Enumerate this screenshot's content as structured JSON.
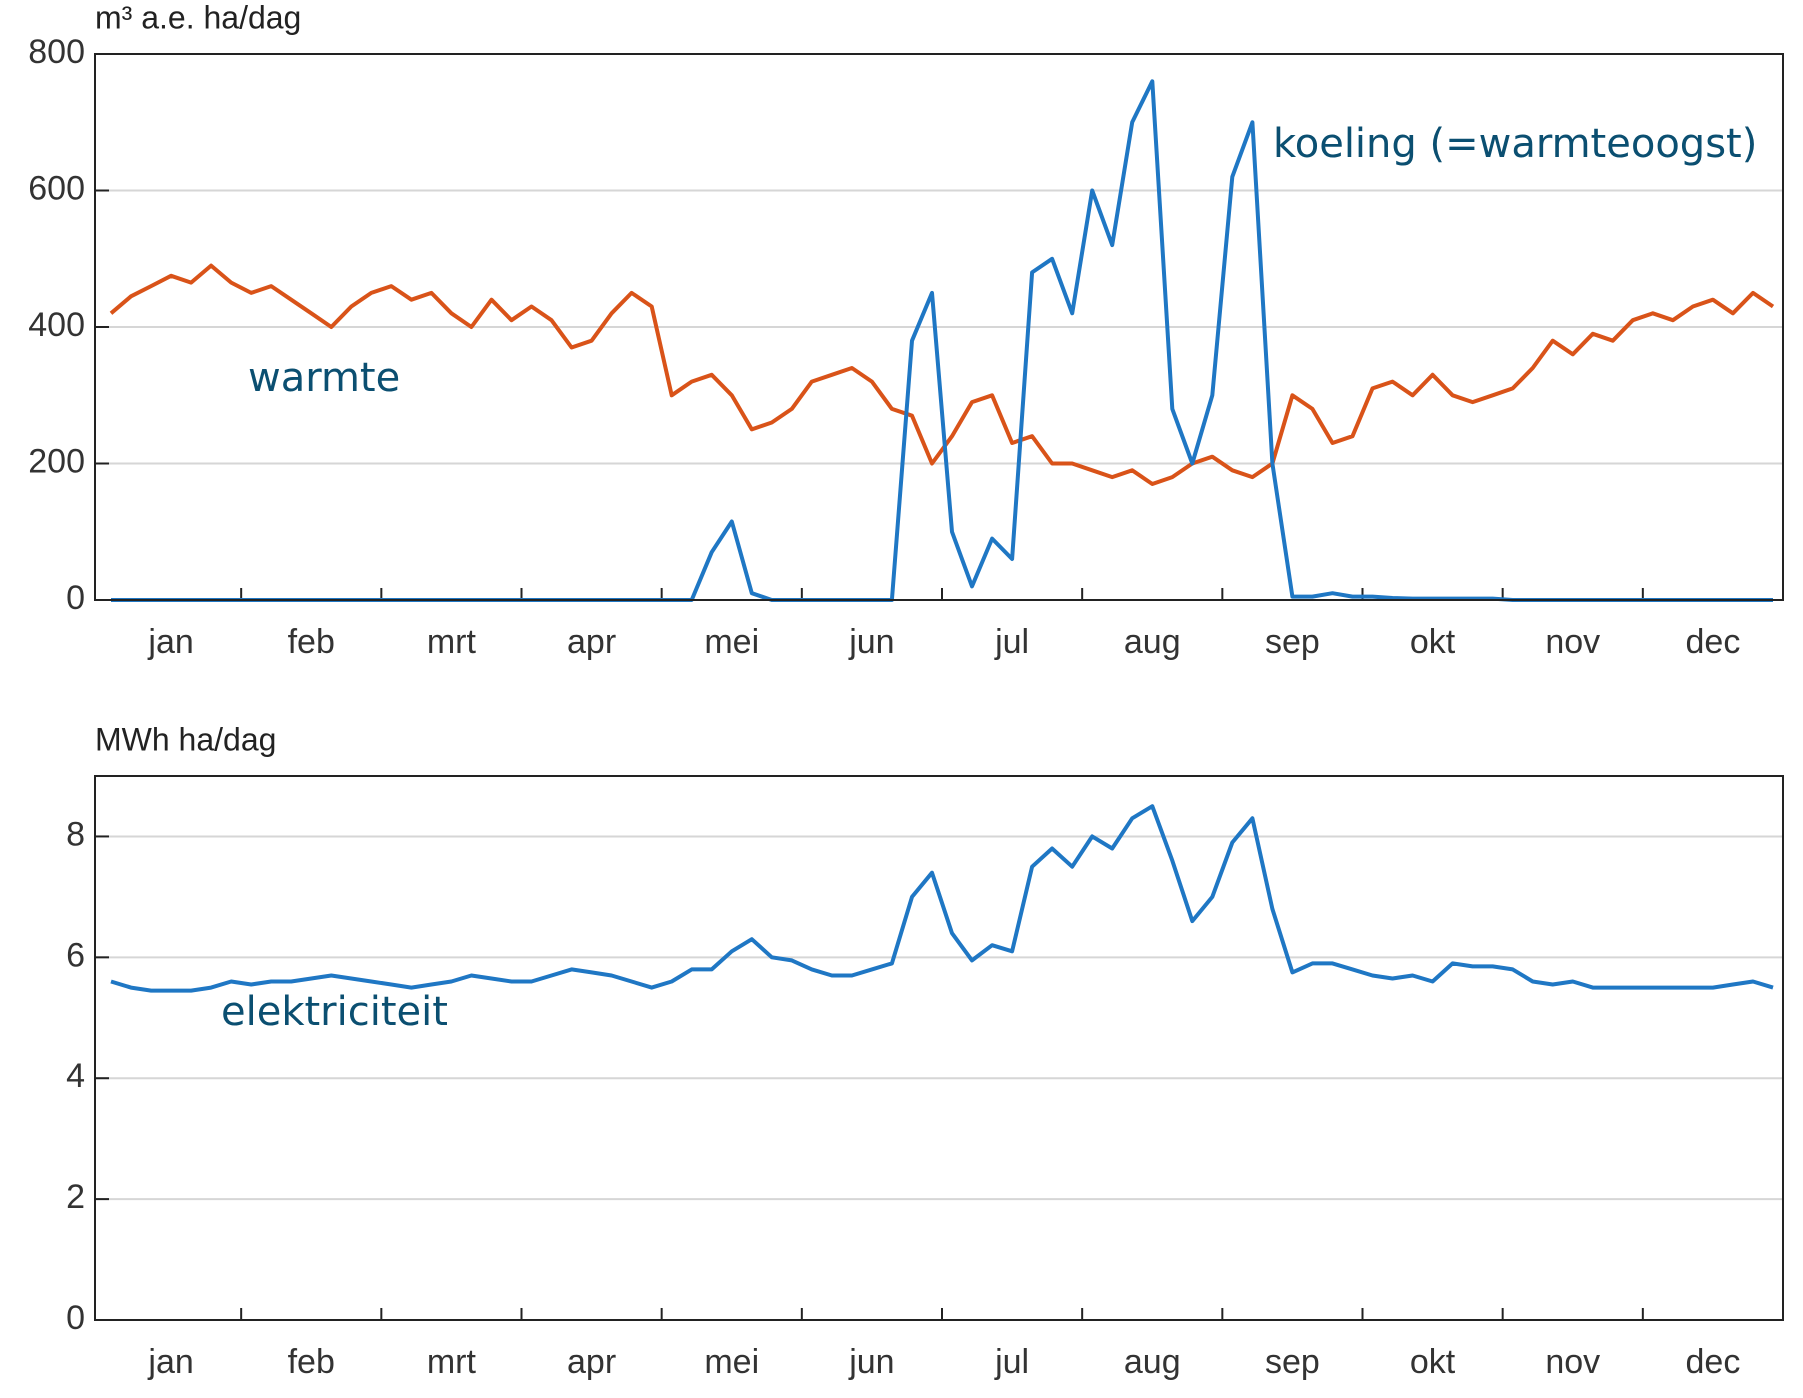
{
  "chart_data": [
    {
      "type": "line",
      "ylabel": "m³ a.e. ha/dag",
      "categories": [
        null,
        null,
        null,
        "jan",
        null,
        null,
        null,
        null,
        null,
        null,
        "feb",
        null,
        null,
        null,
        null,
        null,
        null,
        "mrt",
        null,
        null,
        null,
        null,
        null,
        null,
        "apr",
        null,
        null,
        null,
        null,
        null,
        null,
        "mei",
        null,
        null,
        null,
        null,
        null,
        null,
        "jun",
        null,
        null,
        null,
        null,
        null,
        null,
        "jul",
        null,
        null,
        null,
        null,
        null,
        null,
        "aug",
        null,
        null,
        null,
        null,
        null,
        null,
        "sep",
        null,
        null,
        null,
        null,
        null,
        null,
        "okt",
        null,
        null,
        null,
        null,
        null,
        null,
        "nov",
        null,
        null,
        null,
        null,
        null,
        null,
        "dec",
        null,
        null,
        null
      ],
      "ylim": [
        0,
        800
      ],
      "yticks": [
        0,
        200,
        400,
        600,
        800
      ],
      "grid": true,
      "series": [
        {
          "name": "warmte",
          "color": "#d95319",
          "values": [
            420,
            445,
            460,
            475,
            465,
            490,
            465,
            450,
            460,
            440,
            420,
            400,
            430,
            450,
            460,
            440,
            450,
            420,
            400,
            440,
            410,
            430,
            410,
            370,
            380,
            420,
            450,
            430,
            300,
            320,
            330,
            300,
            250,
            260,
            280,
            320,
            330,
            340,
            320,
            280,
            270,
            200,
            240,
            290,
            300,
            230,
            240,
            200,
            200,
            190,
            180,
            190,
            170,
            180,
            200,
            210,
            190,
            180,
            200,
            300,
            280,
            230,
            240,
            310,
            320,
            300,
            330,
            300,
            290,
            300,
            310,
            340,
            380,
            360,
            390,
            380,
            410,
            420,
            410,
            430,
            440,
            420,
            450,
            430
          ]
        },
        {
          "name": "koeling (=warmteoogst)",
          "color": "#1f77c4",
          "values": [
            0,
            0,
            0,
            0,
            0,
            0,
            0,
            0,
            0,
            0,
            0,
            0,
            0,
            0,
            0,
            0,
            0,
            0,
            0,
            0,
            0,
            0,
            0,
            0,
            0,
            0,
            0,
            0,
            0,
            0,
            70,
            115,
            10,
            0,
            0,
            0,
            0,
            0,
            0,
            0,
            380,
            450,
            100,
            20,
            90,
            60,
            480,
            500,
            420,
            600,
            520,
            700,
            760,
            280,
            200,
            300,
            620,
            700,
            200,
            5,
            5,
            10,
            5,
            5,
            3,
            2,
            2,
            2,
            2,
            2,
            0,
            0,
            0,
            0,
            0,
            0,
            0,
            0,
            0,
            0,
            0,
            0,
            0,
            0
          ]
        }
      ]
    },
    {
      "type": "line",
      "ylabel": "MWh ha/dag",
      "categories": [
        null,
        null,
        null,
        "jan",
        null,
        null,
        null,
        null,
        null,
        null,
        "feb",
        null,
        null,
        null,
        null,
        null,
        null,
        "mrt",
        null,
        null,
        null,
        null,
        null,
        null,
        "apr",
        null,
        null,
        null,
        null,
        null,
        null,
        "mei",
        null,
        null,
        null,
        null,
        null,
        null,
        "jun",
        null,
        null,
        null,
        null,
        null,
        null,
        "jul",
        null,
        null,
        null,
        null,
        null,
        null,
        "aug",
        null,
        null,
        null,
        null,
        null,
        null,
        "sep",
        null,
        null,
        null,
        null,
        null,
        null,
        "okt",
        null,
        null,
        null,
        null,
        null,
        null,
        "nov",
        null,
        null,
        null,
        null,
        null,
        null,
        "dec",
        null,
        null,
        null
      ],
      "ylim": [
        0,
        9
      ],
      "yticks": [
        0,
        2,
        4,
        6,
        8
      ],
      "grid": true,
      "series": [
        {
          "name": "elektriciteit",
          "color": "#1f77c4",
          "values": [
            5.6,
            5.5,
            5.45,
            5.45,
            5.45,
            5.5,
            5.6,
            5.55,
            5.6,
            5.6,
            5.65,
            5.7,
            5.65,
            5.6,
            5.55,
            5.5,
            5.55,
            5.6,
            5.7,
            5.65,
            5.6,
            5.6,
            5.7,
            5.8,
            5.75,
            5.7,
            5.6,
            5.5,
            5.6,
            5.8,
            5.8,
            6.1,
            6.3,
            6.0,
            5.95,
            5.8,
            5.7,
            5.7,
            5.8,
            5.9,
            7.0,
            7.4,
            6.4,
            5.95,
            6.2,
            6.1,
            7.5,
            7.8,
            7.5,
            8.0,
            7.8,
            8.3,
            8.5,
            7.6,
            6.6,
            7.0,
            7.9,
            8.3,
            6.8,
            5.75,
            5.9,
            5.9,
            5.8,
            5.7,
            5.65,
            5.7,
            5.6,
            5.9,
            5.85,
            5.85,
            5.8,
            5.6,
            5.55,
            5.6,
            5.5,
            5.5,
            5.5,
            5.5,
            5.5,
            5.5,
            5.5,
            5.55,
            5.6,
            5.5
          ]
        }
      ]
    }
  ]
}
